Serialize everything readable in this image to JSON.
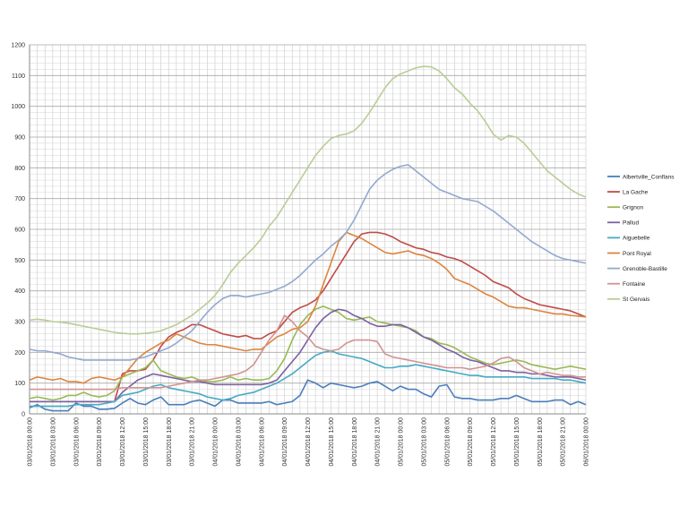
{
  "chart_data": {
    "type": "line",
    "title": "",
    "xlabel": "",
    "ylabel": "",
    "ylim": [
      0,
      1200
    ],
    "yticks": [
      0,
      100,
      200,
      300,
      400,
      500,
      600,
      700,
      800,
      900,
      1000,
      1100,
      1200
    ],
    "x_start": "03/01/2018 00:00",
    "x_end": "06/01/2018 00:00",
    "x_step_hours": 1,
    "xtick_labels": [
      "03/01/2018 00:00",
      "03/01/2018 03:00",
      "03/01/2018 06:00",
      "03/01/2018 09:00",
      "03/01/2018 12:00",
      "03/01/2018 15:00",
      "03/01/2018 18:00",
      "03/01/2018 21:00",
      "04/01/2018 00:00",
      "04/01/2018 03:00",
      "04/01/2018 06:00",
      "04/01/2018 09:00",
      "04/01/2018 12:00",
      "04/01/2018 15:00",
      "04/01/2018 18:00",
      "04/01/2018 21:00",
      "05/01/2018 00:00",
      "05/01/2018 03:00",
      "05/01/2018 06:00",
      "05/01/2018 09:00",
      "05/01/2018 12:00",
      "05/01/2018 15:00",
      "05/01/2018 18:00",
      "05/01/2018 21:00",
      "06/01/2018 00:00"
    ],
    "grid": true,
    "legend_position": "right",
    "series": [
      {
        "name": "Albertville_Conflans",
        "color": "#4a7ebb",
        "values": [
          20,
          30,
          15,
          10,
          10,
          10,
          35,
          25,
          25,
          15,
          15,
          18,
          35,
          50,
          35,
          30,
          45,
          55,
          30,
          30,
          30,
          40,
          45,
          35,
          25,
          45,
          45,
          35,
          35,
          35,
          35,
          40,
          30,
          35,
          40,
          60,
          110,
          100,
          85,
          100,
          95,
          90,
          85,
          90,
          100,
          105,
          90,
          75,
          90,
          80,
          80,
          65,
          55,
          90,
          95,
          55,
          50,
          50,
          45,
          45,
          45,
          50,
          50,
          60,
          50,
          40,
          40,
          40,
          45,
          45,
          30,
          40,
          30
        ]
      },
      {
        "name": "La Gache",
        "color": "#be4b48",
        "values": [
          40,
          40,
          40,
          40,
          40,
          40,
          40,
          40,
          40,
          40,
          40,
          40,
          130,
          140,
          140,
          145,
          175,
          220,
          250,
          265,
          275,
          290,
          290,
          280,
          270,
          260,
          255,
          250,
          255,
          245,
          245,
          260,
          270,
          300,
          330,
          345,
          355,
          370,
          400,
          440,
          480,
          520,
          560,
          585,
          590,
          590,
          585,
          575,
          560,
          550,
          540,
          535,
          525,
          520,
          510,
          505,
          495,
          480,
          465,
          450,
          430,
          420,
          410,
          390,
          375,
          365,
          355,
          350,
          345,
          340,
          335,
          325,
          315
        ]
      },
      {
        "name": "Grignon",
        "color": "#98b954",
        "values": [
          50,
          55,
          50,
          45,
          50,
          60,
          60,
          70,
          60,
          55,
          60,
          75,
          120,
          130,
          140,
          150,
          175,
          140,
          130,
          120,
          115,
          120,
          110,
          105,
          105,
          110,
          120,
          110,
          115,
          110,
          110,
          115,
          140,
          180,
          240,
          290,
          320,
          340,
          350,
          340,
          330,
          310,
          305,
          310,
          315,
          300,
          295,
          290,
          285,
          280,
          270,
          250,
          245,
          230,
          225,
          215,
          200,
          185,
          175,
          165,
          160,
          165,
          170,
          175,
          170,
          160,
          155,
          150,
          145,
          150,
          155,
          150,
          145
        ]
      },
      {
        "name": "Pallud",
        "color": "#7d60a0",
        "values": [
          40,
          40,
          40,
          40,
          40,
          40,
          40,
          40,
          40,
          40,
          40,
          40,
          70,
          90,
          110,
          120,
          130,
          125,
          120,
          115,
          110,
          105,
          105,
          100,
          95,
          95,
          95,
          95,
          95,
          95,
          95,
          100,
          110,
          140,
          170,
          200,
          240,
          280,
          310,
          330,
          340,
          335,
          320,
          310,
          295,
          285,
          285,
          290,
          290,
          280,
          265,
          250,
          240,
          225,
          210,
          200,
          185,
          175,
          170,
          160,
          150,
          140,
          140,
          135,
          135,
          130,
          130,
          125,
          120,
          120,
          120,
          115,
          110
        ]
      },
      {
        "name": "Aiguebelle",
        "color": "#46aac5",
        "values": [
          25,
          25,
          25,
          25,
          25,
          25,
          30,
          30,
          30,
          30,
          35,
          40,
          60,
          65,
          70,
          80,
          90,
          95,
          85,
          80,
          75,
          70,
          65,
          55,
          50,
          45,
          50,
          60,
          65,
          70,
          80,
          90,
          100,
          115,
          130,
          150,
          170,
          190,
          200,
          205,
          195,
          190,
          185,
          180,
          170,
          160,
          150,
          150,
          155,
          155,
          160,
          155,
          150,
          145,
          140,
          135,
          130,
          125,
          125,
          120,
          120,
          120,
          120,
          120,
          120,
          115,
          115,
          115,
          115,
          110,
          110,
          105,
          100
        ]
      },
      {
        "name": "Pont Royal",
        "color": "#dc853e",
        "values": [
          110,
          120,
          115,
          110,
          115,
          105,
          105,
          100,
          115,
          120,
          115,
          110,
          120,
          150,
          180,
          200,
          215,
          230,
          240,
          260,
          250,
          240,
          230,
          225,
          225,
          220,
          215,
          210,
          205,
          210,
          210,
          230,
          250,
          260,
          275,
          280,
          300,
          350,
          420,
          490,
          560,
          590,
          580,
          570,
          555,
          540,
          525,
          520,
          525,
          530,
          520,
          515,
          505,
          490,
          470,
          440,
          430,
          420,
          405,
          390,
          380,
          365,
          350,
          345,
          345,
          340,
          335,
          330,
          325,
          325,
          320,
          318,
          315
        ]
      },
      {
        "name": "Grenoble-Bastille",
        "color": "#93a9cf",
        "values": [
          210,
          205,
          205,
          200,
          195,
          185,
          180,
          175,
          175,
          175,
          175,
          175,
          175,
          175,
          180,
          185,
          195,
          205,
          215,
          230,
          250,
          270,
          300,
          330,
          355,
          375,
          385,
          385,
          380,
          385,
          390,
          395,
          405,
          415,
          430,
          450,
          475,
          500,
          520,
          545,
          565,
          590,
          630,
          680,
          730,
          760,
          780,
          795,
          805,
          810,
          790,
          770,
          750,
          730,
          720,
          710,
          700,
          695,
          690,
          675,
          660,
          640,
          620,
          600,
          580,
          560,
          545,
          530,
          515,
          505,
          500,
          495,
          490
        ]
      },
      {
        "name": "Fontaine",
        "color": "#d19392",
        "values": [
          80,
          80,
          80,
          80,
          80,
          80,
          80,
          80,
          80,
          80,
          80,
          80,
          85,
          85,
          85,
          85,
          85,
          85,
          90,
          95,
          100,
          105,
          110,
          110,
          115,
          120,
          125,
          130,
          140,
          160,
          200,
          240,
          270,
          320,
          300,
          270,
          250,
          220,
          210,
          205,
          210,
          230,
          240,
          240,
          240,
          235,
          195,
          185,
          180,
          175,
          170,
          165,
          160,
          155,
          150,
          150,
          150,
          145,
          150,
          155,
          165,
          180,
          185,
          170,
          150,
          140,
          130,
          135,
          130,
          125,
          125,
          120,
          120
        ]
      },
      {
        "name": "St Gervais",
        "color": "#b9cd96",
        "values": [
          305,
          308,
          305,
          300,
          298,
          295,
          290,
          285,
          280,
          275,
          270,
          265,
          262,
          260,
          260,
          262,
          265,
          270,
          280,
          290,
          305,
          320,
          340,
          360,
          385,
          420,
          460,
          490,
          515,
          540,
          570,
          610,
          640,
          680,
          720,
          760,
          800,
          840,
          870,
          895,
          905,
          910,
          920,
          945,
          980,
          1020,
          1060,
          1090,
          1105,
          1115,
          1125,
          1130,
          1128,
          1115,
          1090,
          1060,
          1040,
          1010,
          985,
          950,
          910,
          890,
          905,
          900,
          880,
          850,
          820,
          790,
          770,
          750,
          730,
          715,
          705
        ]
      }
    ]
  }
}
